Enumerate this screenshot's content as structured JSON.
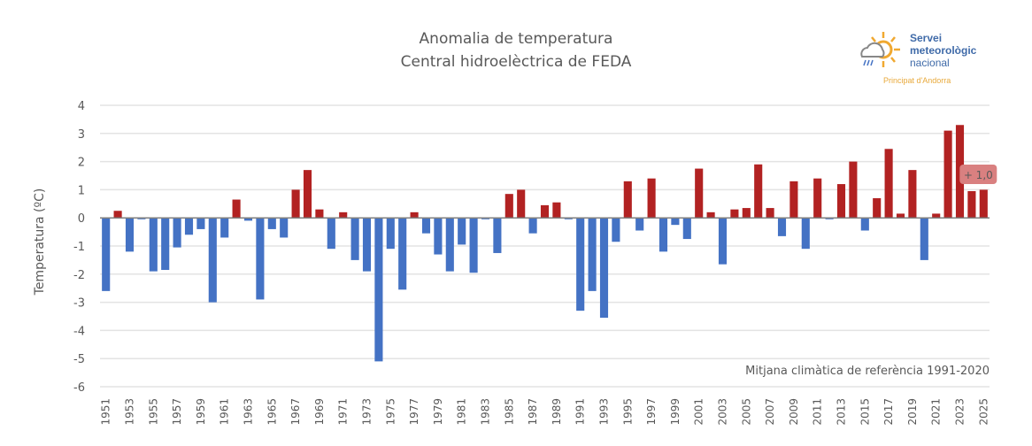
{
  "chart_data": {
    "type": "bar",
    "title": "Anomalia de temperatura",
    "subtitle": "Central hidroelèctrica de FEDA",
    "xlabel": "",
    "ylabel": "Temperatura (ºC)",
    "ylim": [
      -6,
      4
    ],
    "yticks": [
      4,
      3,
      2,
      1,
      0,
      -1,
      -2,
      -3,
      -4,
      -5,
      -6
    ],
    "grid": true,
    "colors": {
      "positive": "#b22222",
      "negative": "#4472c4"
    },
    "categories": [
      1951,
      1952,
      1953,
      1954,
      1955,
      1956,
      1957,
      1958,
      1959,
      1960,
      1961,
      1962,
      1963,
      1964,
      1965,
      1966,
      1967,
      1968,
      1969,
      1970,
      1971,
      1972,
      1973,
      1974,
      1975,
      1976,
      1977,
      1978,
      1979,
      1980,
      1981,
      1982,
      1983,
      1984,
      1985,
      1986,
      1987,
      1988,
      1989,
      1990,
      1991,
      1992,
      1993,
      1994,
      1995,
      1996,
      1997,
      1998,
      1999,
      2000,
      2001,
      2002,
      2003,
      2004,
      2005,
      2006,
      2007,
      2008,
      2009,
      2010,
      2011,
      2012,
      2013,
      2014,
      2015,
      2016,
      2017,
      2018,
      2019,
      2020,
      2021,
      2022,
      2023,
      2024,
      2025
    ],
    "values": [
      -2.6,
      0.25,
      -1.2,
      -0.05,
      -1.9,
      -1.85,
      -1.05,
      -0.6,
      -0.4,
      -3.0,
      -0.7,
      0.65,
      -0.1,
      -2.9,
      -0.4,
      -0.7,
      1.0,
      1.7,
      0.3,
      -1.1,
      0.2,
      -1.5,
      -1.9,
      -5.1,
      -1.1,
      -2.55,
      0.2,
      -0.55,
      -1.3,
      -1.9,
      -0.95,
      -1.95,
      -0.05,
      -1.25,
      0.85,
      1.0,
      -0.55,
      0.45,
      0.55,
      -0.05,
      -3.3,
      -2.6,
      -3.55,
      -0.85,
      1.3,
      -0.45,
      1.4,
      -1.2,
      -0.25,
      -0.75,
      1.75,
      0.2,
      -1.65,
      0.3,
      0.35,
      1.9,
      0.35,
      -0.65,
      1.3,
      -1.1,
      1.4,
      -0.05,
      1.2,
      2.0,
      -0.45,
      0.7,
      2.45,
      0.15,
      1.7,
      -1.5,
      0.15,
      3.1,
      3.3,
      0.95,
      1.0
    ],
    "annotations": {
      "last_value_label": "+ 1,0",
      "reference_note": "Mitjana climàtica de referència 1991-2020"
    }
  },
  "logo": {
    "line1": "Servei",
    "line2": "meteorològic",
    "line3": "nacional",
    "subtitle": "Principat d'Andorra"
  }
}
